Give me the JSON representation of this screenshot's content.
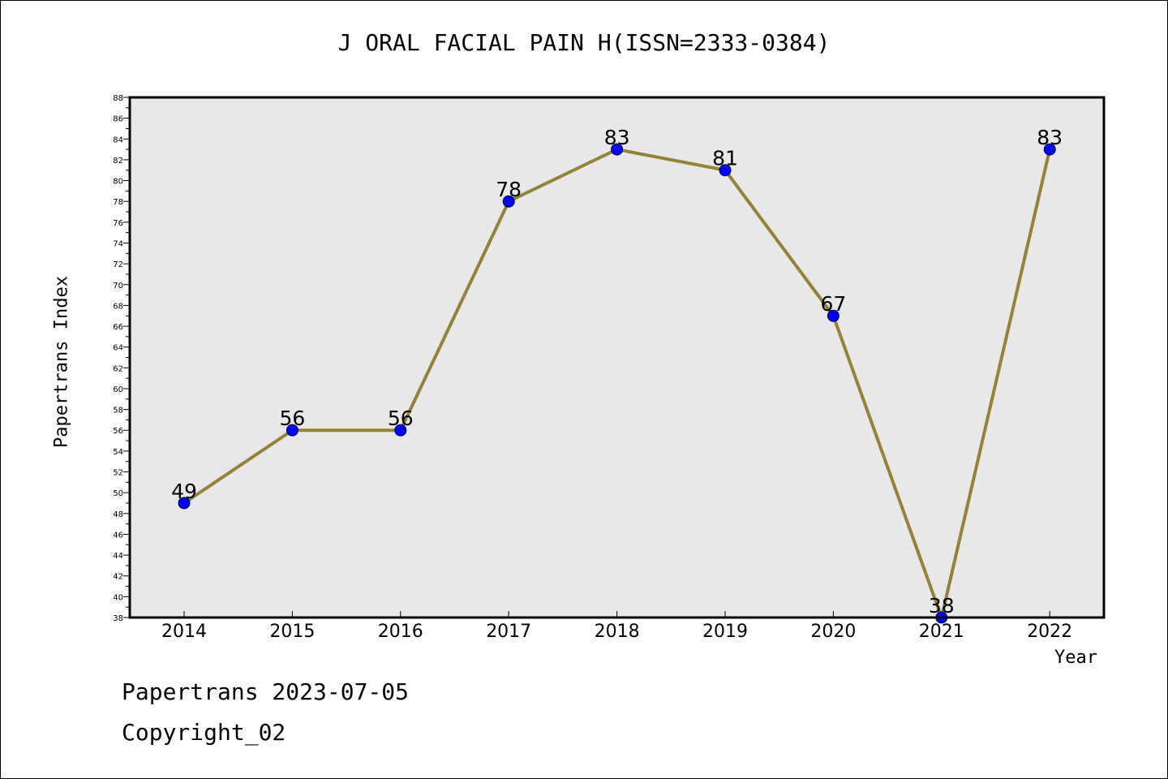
{
  "chart_data": {
    "type": "line",
    "title": "J ORAL FACIAL PAIN H(ISSN=2333-0384)",
    "xlabel": "Year",
    "ylabel": "Papertrans Index",
    "categories": [
      "2014",
      "2015",
      "2016",
      "2017",
      "2018",
      "2019",
      "2020",
      "2021",
      "2022"
    ],
    "values": [
      49,
      56,
      56,
      78,
      83,
      81,
      67,
      38,
      83
    ],
    "data_labels": [
      "49",
      "56",
      "56",
      "78",
      "83",
      "81",
      "67",
      "38",
      "83"
    ],
    "ylim": [
      38,
      88
    ],
    "y_ticks": [
      "38",
      "40",
      "42",
      "44",
      "46",
      "48",
      "50",
      "52",
      "54",
      "56",
      "58",
      "60",
      "62",
      "64",
      "66",
      "68",
      "70",
      "72",
      "74",
      "76",
      "78",
      "80",
      "82",
      "84",
      "86",
      "88"
    ],
    "line_color": "#948236",
    "marker_color": "#0000ff",
    "plot_background": "#e8e8e8",
    "grid": false,
    "legend": "none"
  },
  "footer": {
    "line1": "Papertrans 2023-07-05",
    "line2": "Copyright_02"
  }
}
